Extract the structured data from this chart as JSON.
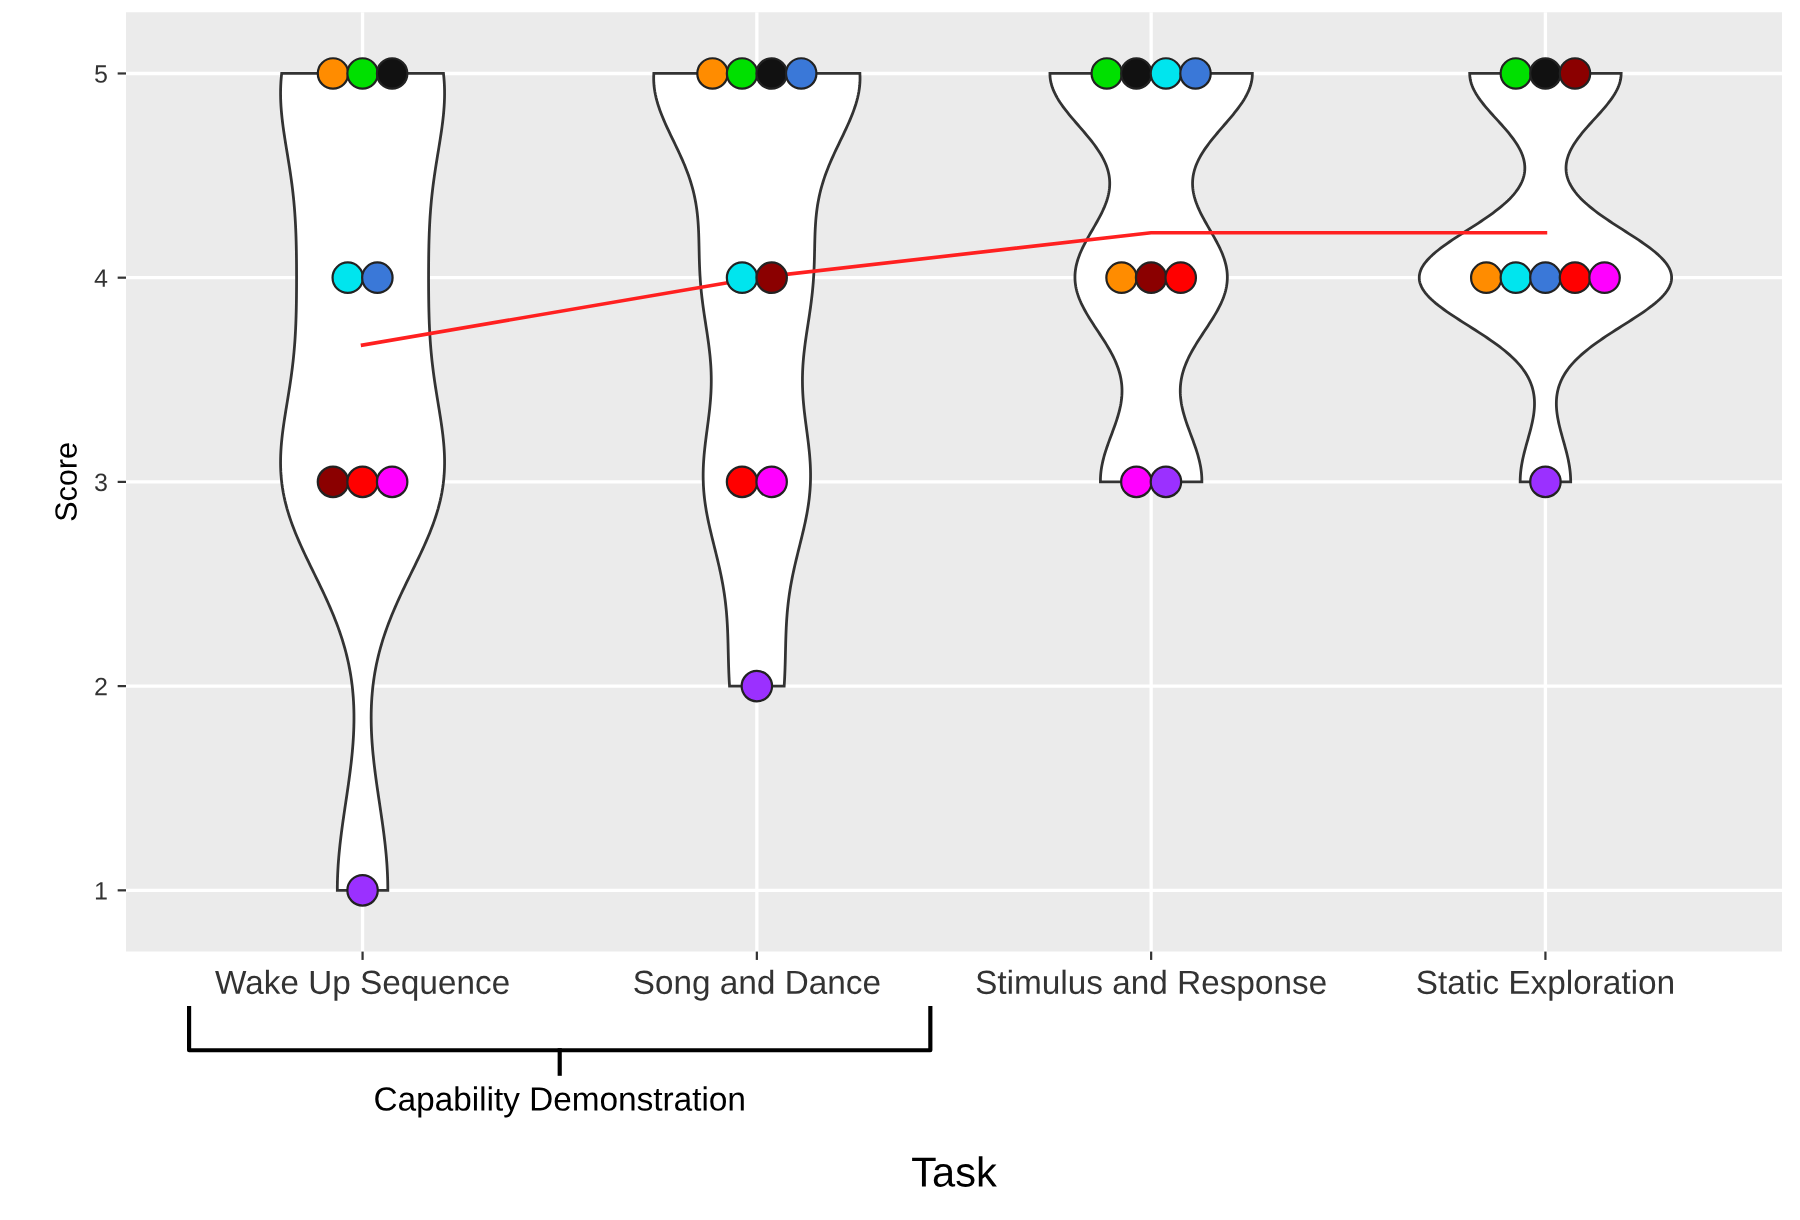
{
  "chart_data": {
    "type": "scatter",
    "xlabel": "Task",
    "ylabel": "Score",
    "categories": [
      "Wake Up Sequence",
      "Song and Dance",
      "Stimulus and Response",
      "Static Exploration"
    ],
    "ylim": [
      0.7,
      5.3
    ],
    "yticks": [
      1,
      2,
      3,
      4,
      5
    ],
    "grid": true,
    "legend": false,
    "marker": "circle",
    "series": [
      {
        "color": "#ff8c00",
        "values": [
          5,
          5,
          4,
          4
        ]
      },
      {
        "color": "#00e000",
        "values": [
          5,
          5,
          5,
          5
        ]
      },
      {
        "color": "#111111",
        "values": [
          5,
          5,
          5,
          5
        ]
      },
      {
        "color": "#00e5ee",
        "values": [
          4,
          4,
          5,
          4
        ]
      },
      {
        "color": "#3a78d8",
        "values": [
          4,
          5,
          5,
          4
        ]
      },
      {
        "color": "#8b0000",
        "values": [
          3,
          4,
          4,
          5
        ]
      },
      {
        "color": "#ff0000",
        "values": [
          3,
          3,
          4,
          4
        ]
      },
      {
        "color": "#ff00ff",
        "values": [
          3,
          3,
          3,
          4
        ]
      },
      {
        "color": "#9b30ff",
        "values": [
          1,
          2,
          3,
          3
        ]
      },
      {
        "type": "line",
        "color": "#ff2020",
        "values": [
          3.67,
          4.0,
          4.22,
          4.22
        ],
        "line_style": "solid",
        "marker": "none"
      }
    ],
    "annotations": [
      "Capability Demonstration"
    ]
  }
}
